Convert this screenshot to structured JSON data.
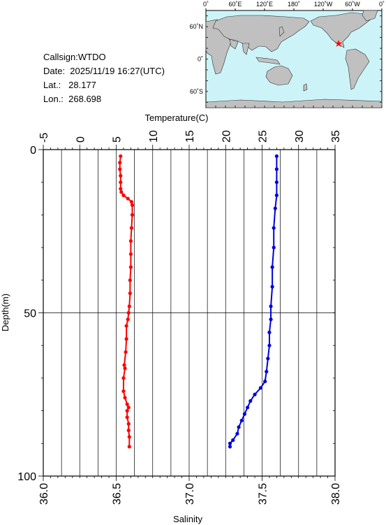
{
  "header": {
    "callsign": "Callsign:WTDO",
    "date": "Date:  2025/11/19 16:27(UTC)",
    "lat": "Lat.:   28.177",
    "lon": "Lon.:  268.698"
  },
  "map": {
    "top_ticks": [
      "0˚",
      "60˚E",
      "120˚E",
      "180˚",
      "120˚W",
      "60˚W",
      "0˚"
    ],
    "left_ticks": [
      "60˚N",
      "0˚",
      "60˚S"
    ],
    "ocean_color": "#ccf4f8",
    "land_color": "#c0c0c0",
    "marker_color": "#ff0000",
    "marker_icon": "star-icon"
  },
  "chart_data": {
    "type": "line",
    "ylabel": "Depth(m)",
    "ylim": [
      100,
      0
    ],
    "yticks": [
      "0",
      "50",
      "100"
    ],
    "top_axis": {
      "label": "Temperature(C)",
      "lim": [
        -5,
        35
      ],
      "ticks": [
        "-5",
        "0",
        "5",
        "10",
        "15",
        "20",
        "25",
        "30",
        "35"
      ]
    },
    "bottom_axis": {
      "label": "Salinity",
      "lim": [
        36.0,
        38.0
      ],
      "ticks": [
        "36.0",
        "36.5",
        "37.0",
        "37.5",
        "38.0"
      ]
    },
    "grid": true,
    "series": [
      {
        "axis": "temperature",
        "color": "#ff0000",
        "points": [
          [
            5.6,
            2
          ],
          [
            5.5,
            4
          ],
          [
            5.5,
            6
          ],
          [
            5.6,
            8
          ],
          [
            5.6,
            10
          ],
          [
            5.6,
            12
          ],
          [
            5.7,
            13
          ],
          [
            6.0,
            14
          ],
          [
            6.6,
            15
          ],
          [
            7.1,
            16
          ],
          [
            7.2,
            17
          ],
          [
            7.2,
            20
          ],
          [
            7.1,
            24
          ],
          [
            7.0,
            28
          ],
          [
            7.0,
            32
          ],
          [
            7.0,
            36
          ],
          [
            6.9,
            40
          ],
          [
            6.9,
            44
          ],
          [
            6.8,
            48
          ],
          [
            6.7,
            50
          ],
          [
            6.6,
            52
          ],
          [
            6.4,
            54
          ],
          [
            6.4,
            58
          ],
          [
            6.3,
            62
          ],
          [
            6.1,
            66
          ],
          [
            6.2,
            67
          ],
          [
            6.0,
            70
          ],
          [
            6.0,
            74
          ],
          [
            6.2,
            76
          ],
          [
            6.5,
            78
          ],
          [
            6.7,
            79
          ],
          [
            6.5,
            80
          ],
          [
            6.5,
            82
          ],
          [
            6.7,
            84
          ],
          [
            6.7,
            86
          ],
          [
            6.8,
            88
          ],
          [
            6.8,
            91
          ]
        ]
      },
      {
        "axis": "salinity",
        "color": "#0000dd",
        "points": [
          [
            37.6,
            2
          ],
          [
            37.6,
            6
          ],
          [
            37.6,
            10
          ],
          [
            37.6,
            14
          ],
          [
            37.59,
            18
          ],
          [
            37.58,
            24
          ],
          [
            37.58,
            30
          ],
          [
            37.57,
            36
          ],
          [
            37.57,
            42
          ],
          [
            37.56,
            48
          ],
          [
            37.56,
            52
          ],
          [
            37.55,
            56
          ],
          [
            37.55,
            60
          ],
          [
            37.54,
            64
          ],
          [
            37.53,
            68
          ],
          [
            37.52,
            71
          ],
          [
            37.49,
            73
          ],
          [
            37.45,
            75
          ],
          [
            37.42,
            77
          ],
          [
            37.4,
            79
          ],
          [
            37.38,
            81
          ],
          [
            37.36,
            83
          ],
          [
            37.34,
            85
          ],
          [
            37.33,
            87
          ],
          [
            37.3,
            89
          ],
          [
            37.28,
            90
          ],
          [
            37.28,
            91
          ]
        ]
      }
    ]
  }
}
